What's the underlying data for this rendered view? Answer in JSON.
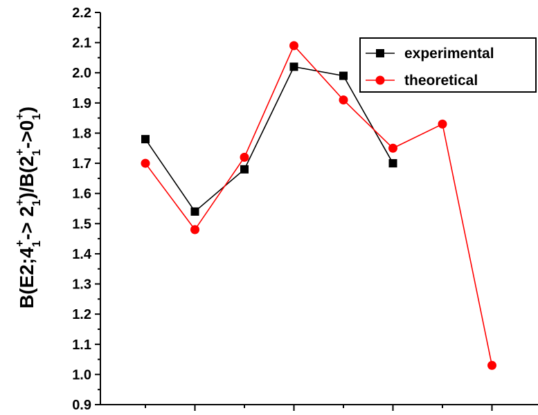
{
  "chart_data": {
    "type": "line",
    "title": "",
    "xlabel": "",
    "ylabel": "B(E2;4₁⁺-> 2₁⁺)/B(2₁⁺->0₁⁺)",
    "ylabel_parts": {
      "p1": "B(E2;4",
      "p2": "1",
      "p3": "+",
      "p4": "-> 2",
      "p5": "1",
      "p6": "+",
      "p7": ")/B(2",
      "p8": "1",
      "p9": "+",
      "p10": "->0",
      "p11": "1",
      "p12": "+",
      "p13": ")"
    },
    "ylim": [
      0.9,
      2.2
    ],
    "y_ticks": [
      "0.9",
      "1.0",
      "1.1",
      "1.2",
      "1.3",
      "1.4",
      "1.5",
      "1.6",
      "1.7",
      "1.8",
      "1.9",
      "2.0",
      "2.1",
      "2.2"
    ],
    "x_tick_count": 8,
    "x": [
      1,
      2,
      3,
      4,
      5,
      6,
      7,
      8
    ],
    "series": [
      {
        "name": "experimental",
        "color": "#000000",
        "marker": "square",
        "points": [
          [
            1,
            1.78
          ],
          [
            2,
            1.54
          ],
          [
            3,
            1.68
          ],
          [
            4,
            2.02
          ],
          [
            5,
            1.99
          ],
          [
            6,
            1.7
          ]
        ]
      },
      {
        "name": "theoretical",
        "color": "#ff0000",
        "marker": "circle",
        "points": [
          [
            1,
            1.7
          ],
          [
            2,
            1.48
          ],
          [
            3,
            1.72
          ],
          [
            4,
            2.09
          ],
          [
            5,
            1.91
          ],
          [
            6,
            1.75
          ],
          [
            7,
            1.83
          ],
          [
            8,
            1.03
          ]
        ]
      }
    ],
    "legend": {
      "position": "top-right"
    }
  }
}
